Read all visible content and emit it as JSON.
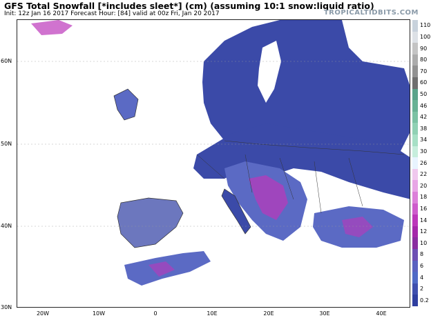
{
  "header": {
    "title": "GFS Total Snowfall [*includes sleet*] (cm) (assuming 10:1 snow:liquid ratio)",
    "subtitle": "Init: 12z Jan 16 2017   Forecast Hour: [84]   valid at 00z Fri, Jan 20 2017",
    "brand": "TROPICALTIDBITS.COM"
  },
  "axes": {
    "lat_labels": [
      "60N",
      "50N",
      "40N",
      "30N"
    ],
    "lon_labels": [
      "20W",
      "10W",
      "0",
      "10E",
      "20E",
      "30E",
      "40E"
    ]
  },
  "legend": {
    "labels": [
      "110",
      "100",
      "90",
      "80",
      "70",
      "60",
      "50",
      "46",
      "42",
      "38",
      "34",
      "30",
      "26",
      "22",
      "20",
      "18",
      "16",
      "14",
      "12",
      "10",
      "8",
      "6",
      "4",
      "2",
      "0.2"
    ],
    "colors": [
      "#c8d2dc",
      "#dde1e6",
      "#c4c4c4",
      "#acacac",
      "#929292",
      "#6f6f6f",
      "#5aa38a",
      "#69b295",
      "#7cc2a4",
      "#90d1b4",
      "#a7e0c6",
      "#c7eedd",
      "#e8f4ff",
      "#f0c8ee",
      "#e8a6e6",
      "#dc80da",
      "#ce5ccc",
      "#bc37ba",
      "#a528aa",
      "#8a2ea0",
      "#6d4fb3",
      "#5a62c0",
      "#4f6ac6",
      "#3f4fae",
      "#2f3fa0"
    ]
  },
  "map_colors": {
    "snow_light": "#3b4aa8",
    "snow_medium": "#5b6ac4",
    "snow_heavy": "#bc37ba",
    "land": "#ffffff",
    "border": "#333333"
  }
}
